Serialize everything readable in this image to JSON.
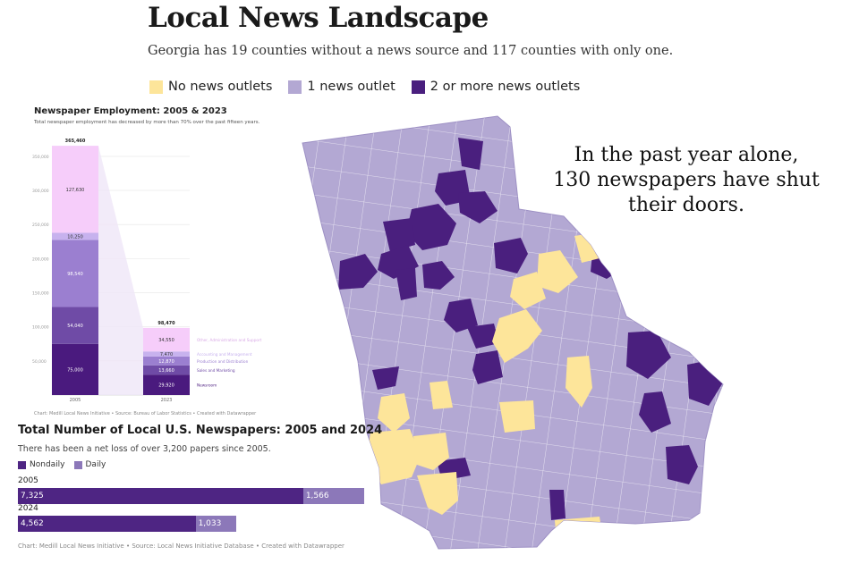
{
  "header": {
    "title": "Local News Landscape",
    "subtitle": "Georgia has 19 counties without a news source and 117 counties with only one."
  },
  "map_legend": [
    {
      "label": "No news outlets",
      "color": "#fde59a"
    },
    {
      "label": "1 news outlet",
      "color": "#b3a8d3"
    },
    {
      "label": "2 or more news outlets",
      "color": "#4a1f7e"
    }
  ],
  "callout": {
    "line1": "In the past year alone,",
    "line2": "130 newspapers have shut",
    "line3": "their doors."
  },
  "employment": {
    "title": "Newspaper Employment: 2005 & 2023",
    "subtitle": "Total newspaper employment has decreased by more than 70% over the past fifteen years.",
    "credit": "Chart: Medill Local News Initiative • Source: Bureau of Labor Statistics • Created with Datawrapper"
  },
  "newspapers": {
    "title": "Total Number of Local U.S. Newspapers: 2005 and 2024",
    "subtitle": "There has been a net loss of over 3,200 papers since 2005.",
    "legend_nondaily": "Nondaily",
    "legend_daily": "Daily",
    "credit": "Chart: Medill Local News Initiative • Source: Local News Initiative Database • Created with Datawrapper"
  },
  "chart_data": [
    {
      "type": "bar",
      "stacked": true,
      "title": "Newspaper Employment: 2005 & 2023",
      "categories": [
        "2005",
        "2023"
      ],
      "ylim": [
        0,
        380000
      ],
      "yticks": [
        "50,000",
        "100,000",
        "150,000",
        "200,000",
        "250,000",
        "300,000",
        "350,000"
      ],
      "totals": [
        "365,460",
        "98,470"
      ],
      "series": [
        {
          "name": "Newsroom",
          "values": [
            75000,
            29920
          ],
          "labels": [
            "75,000",
            "29,920"
          ],
          "color": "#4a1a7e"
        },
        {
          "name": "Sales and Marketing",
          "values": [
            54040,
            13660
          ],
          "labels": [
            "54,040",
            "13,660"
          ],
          "color": "#6f4ba6"
        },
        {
          "name": "Production and Distribution",
          "values": [
            98540,
            12870
          ],
          "labels": [
            "98,540",
            "12,870"
          ],
          "color": "#9b7fd0"
        },
        {
          "name": "Accounting and Management",
          "values": [
            10250,
            7470
          ],
          "labels": [
            "10,250",
            "7,470"
          ],
          "color": "#c7b2ee"
        },
        {
          "name": "Other, Administration and Support",
          "values": [
            127630,
            34550
          ],
          "labels": [
            "127,630",
            "34,550"
          ],
          "color": "#f6cdfa"
        }
      ],
      "grid": true
    },
    {
      "type": "bar",
      "orientation": "horizontal",
      "stacked": true,
      "title": "Total Number of Local U.S. Newspapers: 2005 and 2024",
      "categories": [
        "2005",
        "2024"
      ],
      "series": [
        {
          "name": "Nondaily",
          "values": [
            7325,
            4562
          ],
          "labels": [
            "7,325",
            "4,562"
          ],
          "color": "#4e2583"
        },
        {
          "name": "Daily",
          "values": [
            1566,
            1033
          ],
          "labels": [
            "1,566",
            "1,033"
          ],
          "color": "#8c78b9"
        }
      ]
    }
  ]
}
